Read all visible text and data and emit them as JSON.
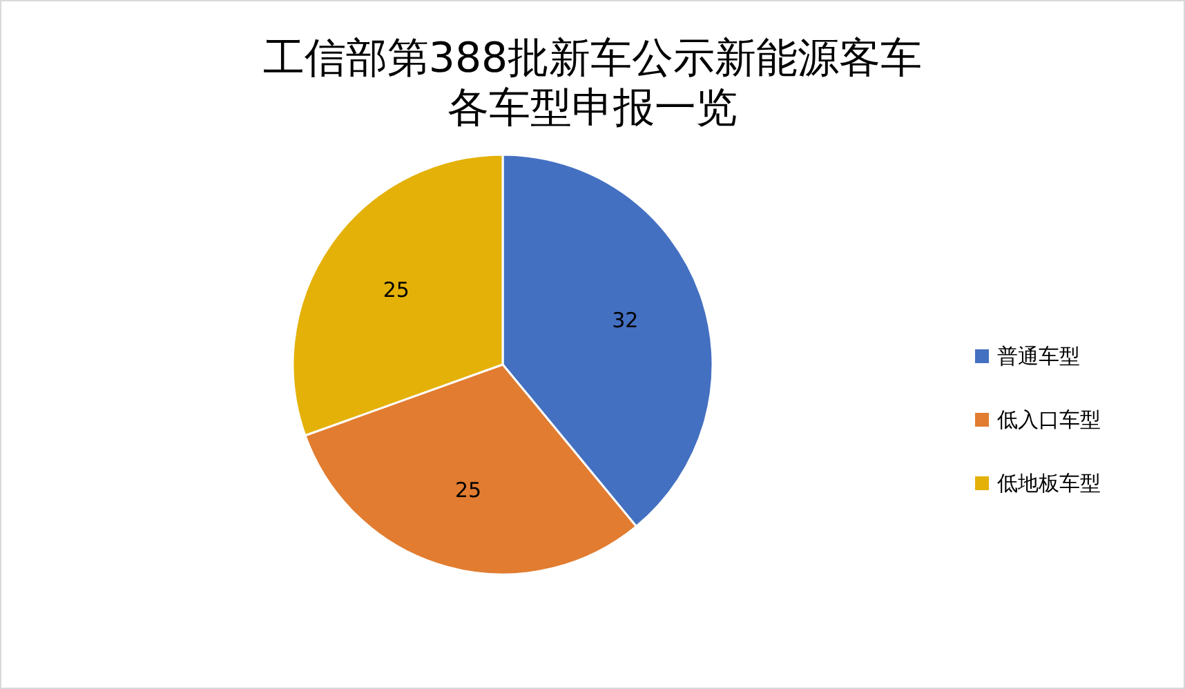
{
  "chart_data": {
    "type": "pie",
    "title": "工信部第388批新车公示新能源客车",
    "subtitle": "各车型申报一览",
    "categories": [
      "普通车型",
      "低入口车型",
      "低地板车型"
    ],
    "values": [
      32,
      25,
      25
    ],
    "colors": [
      "#4470c1",
      "#e17c30",
      "#e4b108"
    ],
    "data_labels": true,
    "legend": "right"
  }
}
